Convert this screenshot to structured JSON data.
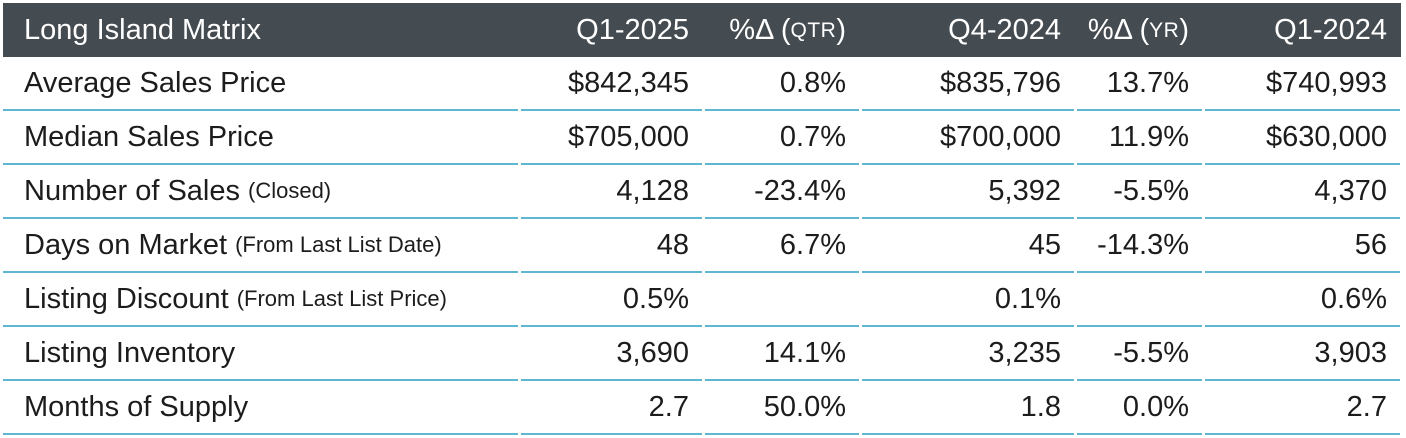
{
  "colors": {
    "header_bg": "#454c51",
    "header_text": "#ffffff",
    "row_separator": "#5fb6d3",
    "body_text": "#1c1c1c"
  },
  "header": {
    "title": "Long Island Matrix",
    "cols": [
      {
        "label": "Q1-2025",
        "small": "",
        "suffix": ""
      },
      {
        "label": "%Δ (",
        "small": "QTR",
        "suffix": ")"
      },
      {
        "label": "Q4-2024",
        "small": "",
        "suffix": ""
      },
      {
        "label": "%Δ (",
        "small": "YR",
        "suffix": ")"
      },
      {
        "label": "Q1-2024",
        "small": "",
        "suffix": ""
      }
    ]
  },
  "chart_data": {
    "type": "table",
    "title": "Long Island Matrix",
    "columns": [
      "Q1-2025",
      "%Δ (QTR)",
      "Q4-2024",
      "%Δ (YR)",
      "Q1-2024"
    ],
    "rows": [
      {
        "label": "Average Sales Price",
        "note": "",
        "values": [
          "$842,345",
          "0.8%",
          "$835,796",
          "13.7%",
          "$740,993"
        ]
      },
      {
        "label": "Median Sales Price",
        "note": "",
        "values": [
          "$705,000",
          "0.7%",
          "$700,000",
          "11.9%",
          "$630,000"
        ]
      },
      {
        "label": "Number of Sales",
        "note": "(Closed)",
        "values": [
          "4,128",
          "-23.4%",
          "5,392",
          "-5.5%",
          "4,370"
        ]
      },
      {
        "label": "Days on Market",
        "note": "(From Last List Date)",
        "values": [
          "48",
          "6.7%",
          "45",
          "-14.3%",
          "56"
        ]
      },
      {
        "label": "Listing Discount",
        "note": "(From Last List Price)",
        "values": [
          "0.5%",
          "",
          "0.1%",
          "",
          "0.6%"
        ]
      },
      {
        "label": "Listing Inventory",
        "note": "",
        "values": [
          "3,690",
          "14.1%",
          "3,235",
          "-5.5%",
          "3,903"
        ]
      },
      {
        "label": "Months of Supply",
        "note": "",
        "values": [
          "2.7",
          "50.0%",
          "1.8",
          "0.0%",
          "2.7"
        ]
      }
    ]
  }
}
